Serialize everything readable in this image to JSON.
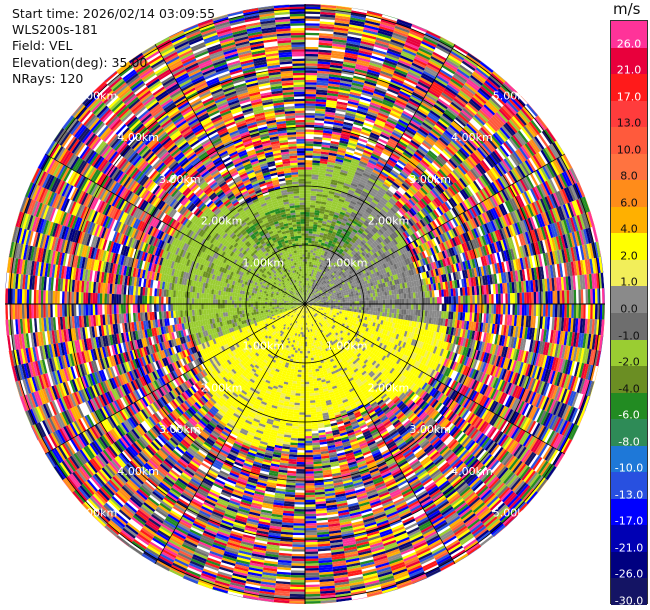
{
  "info": {
    "start_time": "Start time: 2026/02/14 03:09:55",
    "instrument": "WLS200s-181",
    "field": "Field: VEL",
    "elevation": "Elevation(deg): 35.00",
    "nrays": "NRays: 120"
  },
  "colorbar": {
    "unit": "m/s",
    "segments": [
      {
        "label": "26.0",
        "color": "#ff3399"
      },
      {
        "label": "21.0",
        "color": "#e8003c"
      },
      {
        "label": "17.0",
        "color": "#ff1a1a"
      },
      {
        "label": "13.0",
        "color": "#ff3c3c"
      },
      {
        "label": "10.0",
        "color": "#ff5a3c"
      },
      {
        "label": "8.0",
        "color": "#ff7340"
      },
      {
        "label": "6.0",
        "color": "#ff8c1a"
      },
      {
        "label": "4.0",
        "color": "#ffb000"
      },
      {
        "label": "2.0",
        "color": "#ffff00"
      },
      {
        "label": "1.0",
        "color": "#f2ee5a"
      },
      {
        "label": "0.0",
        "color": "#8a8a8a"
      },
      {
        "label": "-1.0",
        "color": "#6e6e6e"
      },
      {
        "label": "-2.0",
        "color": "#9acd32"
      },
      {
        "label": "-4.0",
        "color": "#6b8e23"
      },
      {
        "label": "-6.0",
        "color": "#228b22"
      },
      {
        "label": "-8.0",
        "color": "#2e8b57"
      },
      {
        "label": "-10.0",
        "color": "#1e78d8"
      },
      {
        "label": "-13.0",
        "color": "#2850e0"
      },
      {
        "label": "-17.0",
        "color": "#0000ff"
      },
      {
        "label": "-21.0",
        "color": "#0000b4"
      },
      {
        "label": "-26.0",
        "color": "#000080"
      },
      {
        "label": "-30.0",
        "color": "#141464"
      }
    ]
  },
  "ring_labels": [
    "1.00km",
    "2.00km",
    "3.00km",
    "4.00km",
    "5.00km"
  ],
  "scan": {
    "nrays": 120,
    "max_range_km": 5.12,
    "valid_range_km": 2.4
  }
}
